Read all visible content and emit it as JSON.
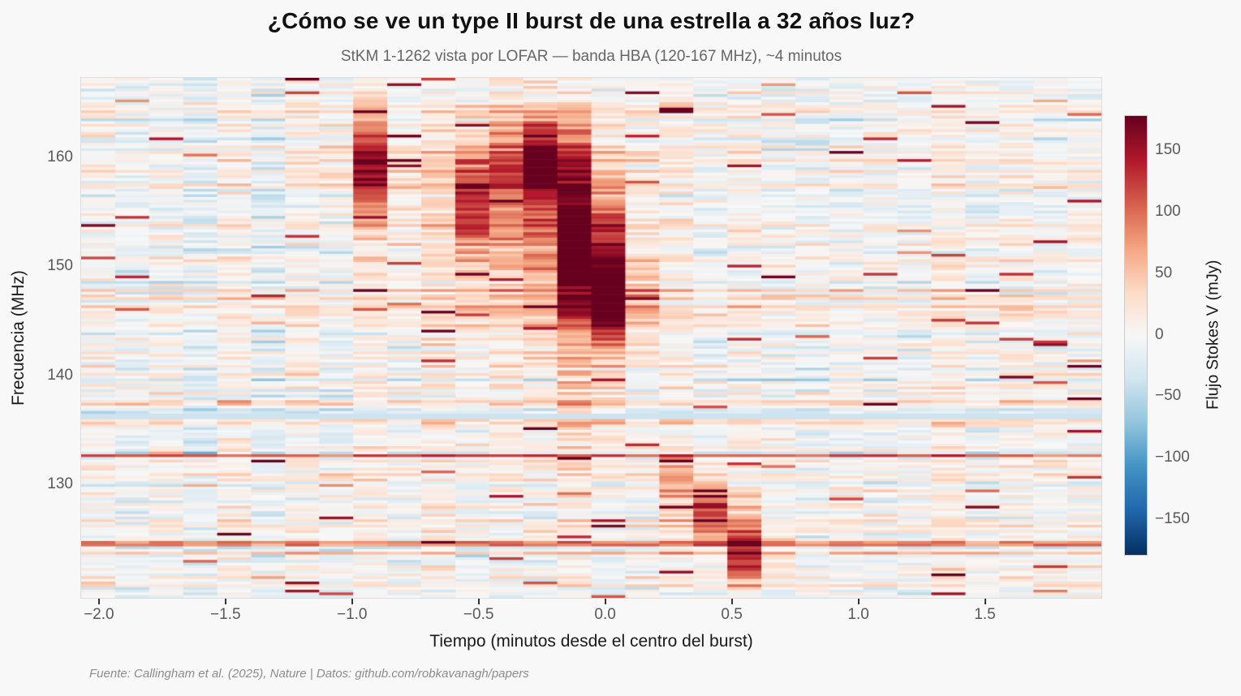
{
  "title": "¿Cómo se ve un type II burst de una estrella a 32 años luz?",
  "subtitle": "StKM 1-1262 vista por LOFAR — banda HBA (120-167 MHz), ~4 minutos",
  "footer": "Fuente: Callingham et al. (2025), Nature | Datos: github.com/robkavanagh/papers",
  "colors": {
    "background": "#f8f8f8",
    "title_text": "#111111",
    "subtitle_text": "#666666",
    "tick_text": "#595959",
    "axis_label_text": "#1a1a1a",
    "footer_text": "#8c8c8c"
  },
  "chart_data": {
    "type": "heatmap",
    "title": "¿Cómo se ve un type II burst de una estrella a 32 años luz?",
    "subtitle": "StKM 1-1262 vista por LOFAR — banda HBA (120-167 MHz), ~4 minutos",
    "xlabel": "Tiempo (minutos desde el centro del burst)",
    "ylabel": "Frecuencia (MHz)",
    "colorbar_label": "Flujo Stokes V (mJy)",
    "x_range": [
      -2.07,
      1.96
    ],
    "y_range": [
      119.6,
      167.3
    ],
    "value_range": [
      -178,
      178
    ],
    "x_ticks": [
      -2.0,
      -1.5,
      -1.0,
      -0.5,
      0.0,
      0.5,
      1.0,
      1.5
    ],
    "y_ticks": [
      130,
      140,
      150,
      160
    ],
    "colorbar_ticks": [
      -150,
      -100,
      -50,
      0,
      50,
      100,
      150
    ],
    "grid": {
      "cols": 30,
      "rows": 192
    },
    "colormap": {
      "name": "RdBu_r",
      "stops": [
        [
          0.0,
          "#053061"
        ],
        [
          0.1,
          "#2166ac"
        ],
        [
          0.2,
          "#4393c3"
        ],
        [
          0.3,
          "#92c5de"
        ],
        [
          0.4,
          "#d1e5f0"
        ],
        [
          0.5,
          "#f7f7f7"
        ],
        [
          0.6,
          "#fddbc7"
        ],
        [
          0.7,
          "#f4a582"
        ],
        [
          0.8,
          "#d6604d"
        ],
        [
          0.9,
          "#b2182b"
        ],
        [
          1.0,
          "#67001f"
        ]
      ]
    },
    "noise": {
      "mean": 4,
      "row_sigma": 14,
      "col_sigma": 7,
      "cell_sigma": 16,
      "hot_row_prob": 0.06,
      "hot_row_base": 40,
      "hot_row_spread": 55,
      "cold_row_prob": 0.18,
      "cold_row_amount": 14,
      "spike_prob": 0.016,
      "spike_base": 90,
      "spike_spread": 88
    },
    "flagged_band": {
      "f_min": 135.9,
      "f_max": 136.6,
      "value": -38
    },
    "features": [
      {
        "t": -0.93,
        "f": 159.0,
        "st": 0.07,
        "sf": 3.2,
        "amp": 150
      },
      {
        "t": -0.52,
        "f": 156.0,
        "st": 0.07,
        "sf": 3.5,
        "amp": 105
      },
      {
        "t": -0.25,
        "f": 159.5,
        "st": 0.11,
        "sf": 3.0,
        "amp": 165
      },
      {
        "t": -0.08,
        "f": 151.5,
        "st": 0.1,
        "sf": 4.5,
        "amp": 185
      },
      {
        "t": 0.02,
        "f": 146.5,
        "st": 0.08,
        "sf": 2.5,
        "amp": 150
      },
      {
        "t": -0.3,
        "f": 153.0,
        "st": 0.28,
        "sf": 7.5,
        "amp": 45
      },
      {
        "t": -0.05,
        "f": 137.0,
        "st": 0.08,
        "sf": 5.0,
        "amp": 50
      },
      {
        "t": 0.33,
        "f": 130.5,
        "st": 0.05,
        "sf": 1.5,
        "amp": 80
      },
      {
        "t": 0.42,
        "f": 127.5,
        "st": 0.08,
        "sf": 1.8,
        "amp": 130
      },
      {
        "t": 0.57,
        "f": 123.5,
        "st": 0.07,
        "sf": 1.8,
        "amp": 160
      }
    ],
    "seed": 7
  }
}
